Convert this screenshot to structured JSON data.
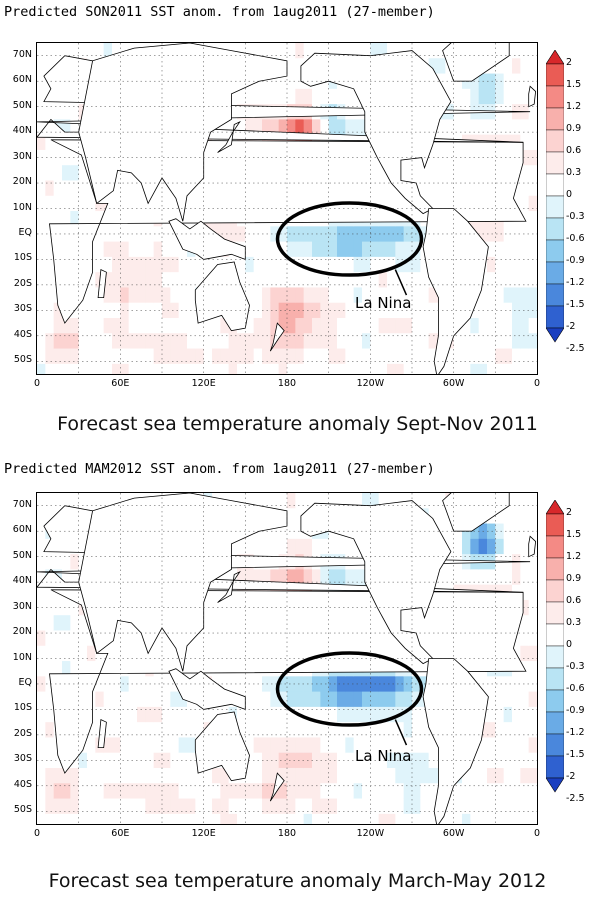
{
  "panels": [
    {
      "title": "Predicted SON2011 SST anom. from 1aug2011 (27-member)",
      "caption": "Forecast sea temperature anomaly Sept-Nov 2011",
      "annotation": "La Nina",
      "scheme": 0
    },
    {
      "title": "Predicted MAM2012 SST anom. from 1aug2011 (27-member)",
      "caption": "Forecast sea temperature anomaly March-May 2012",
      "annotation": "La Nina",
      "scheme": 1
    }
  ],
  "latitudes": [
    "70N",
    "60N",
    "50N",
    "40N",
    "30N",
    "20N",
    "10N",
    "EQ",
    "10S",
    "20S",
    "30S",
    "40S",
    "50S"
  ],
  "longitudes": [
    "0",
    "60E",
    "120E",
    "180",
    "120W",
    "60W",
    "0"
  ],
  "colorbar": {
    "labels": [
      "2",
      "1.5",
      "1.2",
      "0.9",
      "0.6",
      "0.3",
      "0",
      "-0.3",
      "-0.6",
      "-0.9",
      "-1.2",
      "-1.5",
      "-2",
      "-2.5"
    ],
    "colors": [
      "#d7282b",
      "#ea5c55",
      "#f48a85",
      "#f8b0ac",
      "#fcd3d1",
      "#fdeceb",
      "#ffffff",
      "#e0f4fb",
      "#b9e4f4",
      "#8dcbee",
      "#6aabe6",
      "#4a87dc",
      "#2f61d0",
      "#1a3fc0"
    ]
  }
}
